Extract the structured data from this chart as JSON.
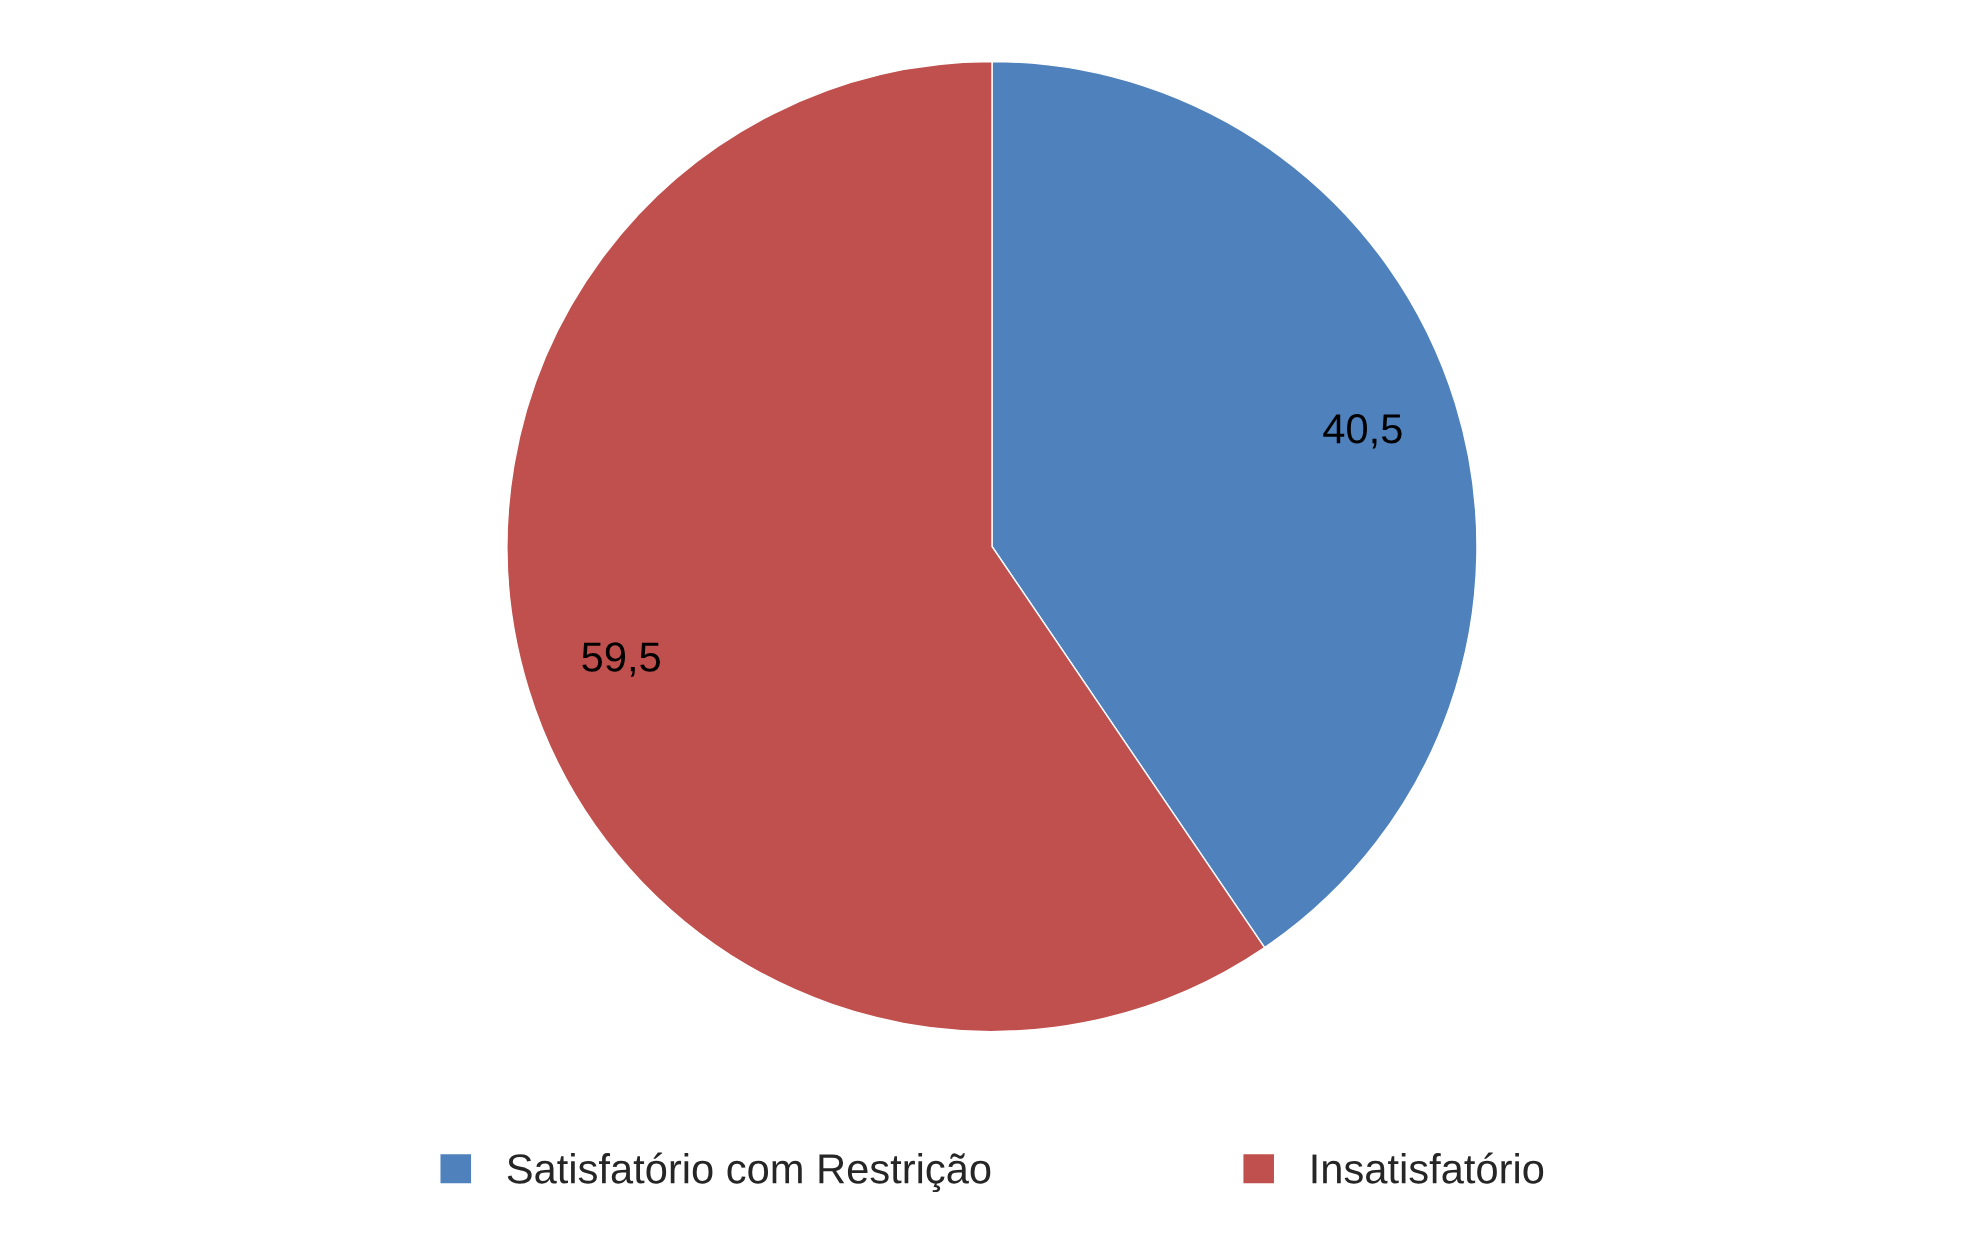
{
  "chart_data": {
    "type": "pie",
    "categories": [
      "Satisfatório com Restrição",
      "Insatisfatório"
    ],
    "values": [
      40.5,
      59.5
    ],
    "value_labels": [
      "40,5",
      "59,5"
    ],
    "colors": [
      "#4f81bd",
      "#c0504d"
    ],
    "legend": "bottom"
  }
}
